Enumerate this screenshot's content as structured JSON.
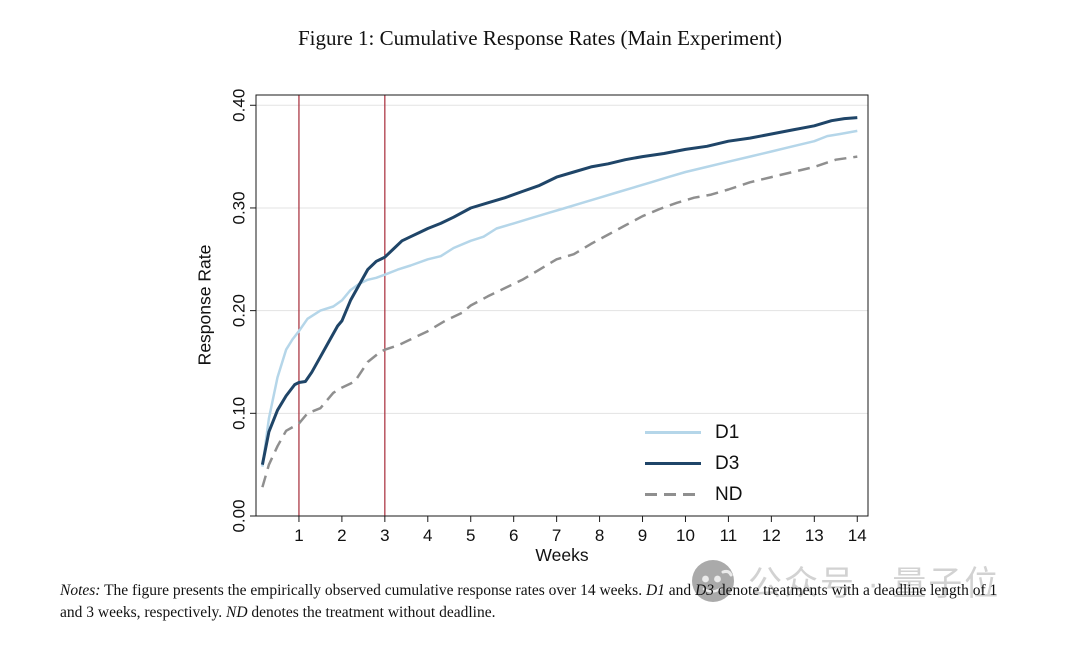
{
  "chart_data": {
    "type": "line",
    "title": "Figure 1: Cumulative Response Rates (Main Experiment)",
    "xlabel": "Weeks",
    "ylabel": "Response Rate",
    "xlim": [
      0,
      14.25
    ],
    "ylim": [
      0,
      0.41
    ],
    "xticks": [
      1,
      2,
      3,
      4,
      5,
      6,
      7,
      8,
      9,
      10,
      11,
      12,
      13,
      14
    ],
    "yticks": [
      0,
      0.1,
      0.2,
      0.3,
      0.4
    ],
    "ytick_labels": [
      "0.00",
      "0.10",
      "0.20",
      "0.30",
      "0.40"
    ],
    "grid": "horizontal",
    "legend_position": "inside bottom-right",
    "reference_lines": [
      {
        "axis": "x",
        "value": 1,
        "color": "#a62a38"
      },
      {
        "axis": "x",
        "value": 3,
        "color": "#a62a38"
      }
    ],
    "series": [
      {
        "name": "D1",
        "color": "#b5d6e9",
        "dash": null,
        "width": 2.5,
        "x": [
          0.15,
          0.3,
          0.5,
          0.7,
          0.85,
          1.0,
          1.2,
          1.5,
          1.8,
          2.0,
          2.2,
          2.4,
          2.6,
          2.8,
          3.0,
          3.3,
          3.6,
          4.0,
          4.3,
          4.6,
          5.0,
          5.3,
          5.6,
          6.0,
          6.4,
          6.8,
          7.2,
          7.6,
          8.0,
          8.4,
          8.8,
          9.2,
          9.6,
          10.0,
          10.5,
          11.0,
          11.5,
          12.0,
          12.5,
          13.0,
          13.3,
          13.6,
          14.0
        ],
        "y": [
          0.048,
          0.095,
          0.135,
          0.162,
          0.172,
          0.18,
          0.192,
          0.2,
          0.204,
          0.21,
          0.22,
          0.226,
          0.23,
          0.232,
          0.235,
          0.24,
          0.244,
          0.25,
          0.253,
          0.261,
          0.268,
          0.272,
          0.28,
          0.285,
          0.29,
          0.295,
          0.3,
          0.305,
          0.31,
          0.315,
          0.32,
          0.325,
          0.33,
          0.335,
          0.34,
          0.345,
          0.35,
          0.355,
          0.36,
          0.365,
          0.37,
          0.372,
          0.375
        ]
      },
      {
        "name": "D3",
        "color": "#1f4568",
        "dash": null,
        "width": 3,
        "x": [
          0.15,
          0.3,
          0.5,
          0.7,
          0.9,
          1.0,
          1.15,
          1.3,
          1.5,
          1.7,
          1.9,
          2.0,
          2.2,
          2.4,
          2.6,
          2.8,
          3.0,
          3.2,
          3.4,
          3.6,
          3.8,
          4.0,
          4.3,
          4.6,
          5.0,
          5.4,
          5.8,
          6.2,
          6.6,
          7.0,
          7.4,
          7.8,
          8.2,
          8.6,
          9.0,
          9.5,
          10.0,
          10.5,
          11.0,
          11.5,
          12.0,
          12.5,
          13.0,
          13.4,
          13.7,
          14.0
        ],
        "y": [
          0.05,
          0.082,
          0.103,
          0.117,
          0.128,
          0.13,
          0.131,
          0.14,
          0.155,
          0.17,
          0.185,
          0.19,
          0.21,
          0.225,
          0.24,
          0.248,
          0.252,
          0.26,
          0.268,
          0.272,
          0.276,
          0.28,
          0.285,
          0.291,
          0.3,
          0.305,
          0.31,
          0.316,
          0.322,
          0.33,
          0.335,
          0.34,
          0.343,
          0.347,
          0.35,
          0.353,
          0.357,
          0.36,
          0.365,
          0.368,
          0.372,
          0.376,
          0.38,
          0.385,
          0.387,
          0.388
        ]
      },
      {
        "name": "ND",
        "color": "#8f8f8f",
        "dash": [
          12,
          7
        ],
        "width": 2.5,
        "x": [
          0.15,
          0.3,
          0.5,
          0.7,
          1.0,
          1.2,
          1.5,
          1.8,
          2.0,
          2.3,
          2.6,
          2.9,
          3.0,
          3.3,
          3.6,
          4.0,
          4.4,
          4.8,
          5.0,
          5.4,
          5.8,
          6.2,
          6.6,
          7.0,
          7.4,
          7.8,
          8.2,
          8.6,
          9.0,
          9.4,
          9.8,
          10.2,
          10.6,
          11.0,
          11.5,
          12.0,
          12.5,
          13.0,
          13.5,
          14.0
        ],
        "y": [
          0.028,
          0.05,
          0.068,
          0.083,
          0.09,
          0.1,
          0.105,
          0.12,
          0.125,
          0.131,
          0.15,
          0.16,
          0.162,
          0.166,
          0.172,
          0.18,
          0.19,
          0.198,
          0.205,
          0.214,
          0.222,
          0.23,
          0.24,
          0.25,
          0.255,
          0.265,
          0.274,
          0.283,
          0.292,
          0.299,
          0.305,
          0.31,
          0.313,
          0.318,
          0.325,
          0.33,
          0.335,
          0.34,
          0.347,
          0.35
        ]
      }
    ]
  },
  "notes": {
    "label": "Notes:",
    "seg1": "The figure presents the empirically observed cumulative response rates over 14 weeks.",
    "d1": "D1",
    "and_word": "and",
    "d3": "D3",
    "seg2": "denote treatments with a deadline length of 1 and 3 weeks, respectively.",
    "nd": "ND",
    "seg3": "denotes the treatment without deadline."
  },
  "watermark": {
    "text": "公众号 · 量子位"
  },
  "colors": {
    "grid": "#e3e3e3",
    "box": "#1a1a1a",
    "text": "#111111"
  }
}
